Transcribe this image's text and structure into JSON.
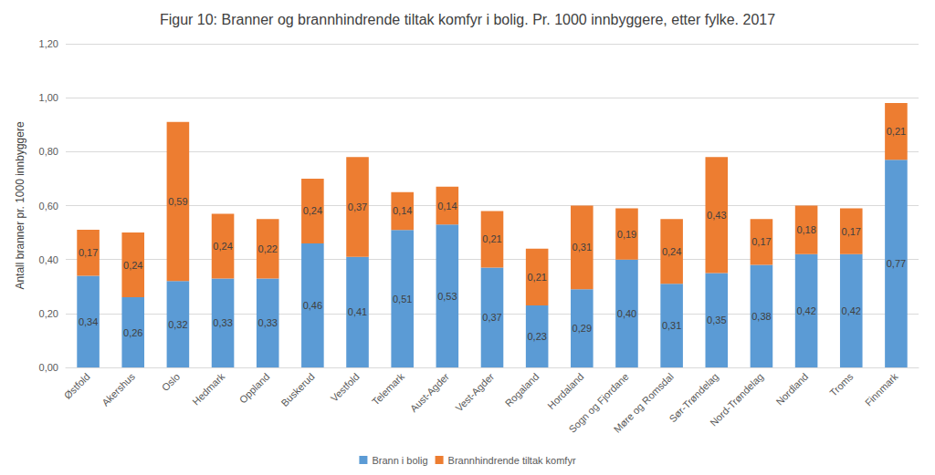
{
  "chart_data": {
    "type": "bar",
    "title": "Figur 10: Branner og brannhindrende tiltak komfyr i bolig. Pr. 1000 innbyggere, etter fylke. 2017",
    "y_label": "Antall branner pr. 1000 innbyggere",
    "categories": [
      "Østfold",
      "Akershus",
      "Oslo",
      "Hedmark",
      "Oppland",
      "Buskerud",
      "Vestfold",
      "Telemark",
      "Aust-Agder",
      "Vest-Agder",
      "Rogaland",
      "Hordaland",
      "Sogn og Fjordane",
      "Møre og Romsdal",
      "Sør-Trøndelag",
      "Nord-Trøndelag",
      "Nordland",
      "Troms",
      "Finnmark"
    ],
    "series": [
      {
        "name": "Brann i bolig",
        "color": "#5b9bd5",
        "values": [
          0.34,
          0.26,
          0.32,
          0.33,
          0.33,
          0.46,
          0.41,
          0.51,
          0.53,
          0.37,
          0.23,
          0.29,
          0.4,
          0.31,
          0.35,
          0.38,
          0.42,
          0.42,
          0.77
        ],
        "value_labels": [
          "0,34",
          "0,26",
          "0,32",
          "0,33",
          "0,33",
          "0,46",
          "0,41",
          "0,51",
          "0,53",
          "0,37",
          "0,23",
          "0,29",
          "0,40",
          "0,31",
          "0,35",
          "0,38",
          "0,42",
          "0,42",
          "0,77"
        ]
      },
      {
        "name": "Brannhindrende tiltak komfyr",
        "color": "#ed7d31",
        "values": [
          0.17,
          0.24,
          0.59,
          0.24,
          0.22,
          0.24,
          0.37,
          0.14,
          0.14,
          0.21,
          0.21,
          0.31,
          0.19,
          0.24,
          0.43,
          0.17,
          0.18,
          0.17,
          0.21
        ],
        "value_labels": [
          "0,17",
          "0,24",
          "0,59",
          "0,24",
          "0,22",
          "0,24",
          "0,37",
          "0,14",
          "0,14",
          "0,21",
          "0,21",
          "0,31",
          "0,19",
          "0,24",
          "0,43",
          "0,17",
          "0,18",
          "0,17",
          "0,21"
        ]
      }
    ],
    "ylim": [
      0,
      1.2
    ],
    "yticks": [
      {
        "value": 0,
        "label": "0,00"
      },
      {
        "value": 0.2,
        "label": "0,20"
      },
      {
        "value": 0.4,
        "label": "0,40"
      },
      {
        "value": 0.6,
        "label": "0,60"
      },
      {
        "value": 0.8,
        "label": "0,80"
      },
      {
        "value": 1.0,
        "label": "1,00"
      },
      {
        "value": 1.2,
        "label": "1,20"
      }
    ],
    "stacked": true,
    "data_labels": true,
    "grid": true,
    "legend": "bottom"
  }
}
